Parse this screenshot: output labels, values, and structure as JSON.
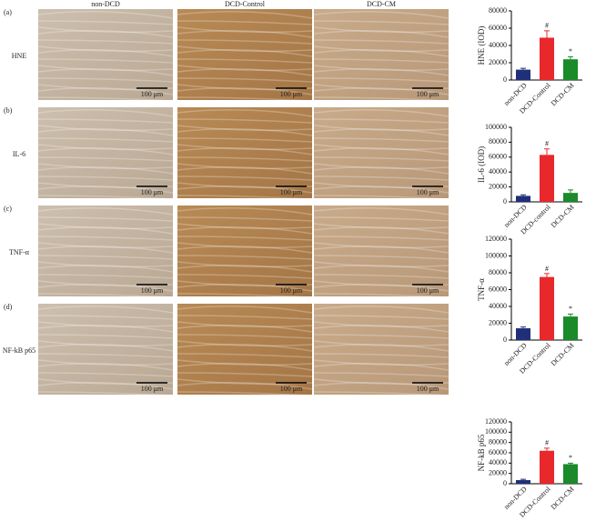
{
  "figure": {
    "columns": [
      "non-DCD",
      "DCD-Control",
      "DCD-CM"
    ],
    "rows": [
      {
        "tag": "(a)",
        "label": "HNE"
      },
      {
        "tag": "(b)",
        "label": "IL-6"
      },
      {
        "tag": "(c)",
        "label": "TNF-α"
      },
      {
        "tag": "(d)",
        "label": "NF-kB p65"
      }
    ],
    "scale_bar": "100 μm"
  },
  "chart_data": [
    {
      "type": "bar",
      "y_label": "HNE (IOD)",
      "categories": [
        "non-DCD",
        "DCD-Control",
        "DCD-CM"
      ],
      "values": [
        12000,
        49000,
        24000
      ],
      "errors": [
        1500,
        8000,
        3000
      ],
      "colors": [
        "#1f2f7a",
        "#e8282a",
        "#1a8a2a"
      ],
      "ylim": [
        0,
        80000
      ],
      "yticks": [
        0,
        20000,
        40000,
        60000,
        80000
      ],
      "annotations": [
        {
          "text": "#",
          "category": "DCD-Control"
        },
        {
          "text": "*",
          "category": "DCD-CM"
        }
      ]
    },
    {
      "type": "bar",
      "y_label": "IL-6 (IOD)",
      "categories": [
        "non-DCD",
        "DCD-control",
        "DCD-CM"
      ],
      "values": [
        8000,
        63000,
        12000
      ],
      "errors": [
        1500,
        8000,
        4000
      ],
      "colors": [
        "#1f2f7a",
        "#e8282a",
        "#1a8a2a"
      ],
      "ylim": [
        0,
        100000
      ],
      "yticks": [
        0,
        20000,
        40000,
        60000,
        80000,
        100000
      ],
      "annotations": [
        {
          "text": "#",
          "category": "DCD-control"
        }
      ]
    },
    {
      "type": "bar",
      "y_label": "TNF-α",
      "categories": [
        "non-DCD",
        "DCD-Control",
        "DCD-CM"
      ],
      "values": [
        14000,
        75000,
        28000
      ],
      "errors": [
        1500,
        4000,
        3000
      ],
      "colors": [
        "#1f2f7a",
        "#e8282a",
        "#1a8a2a"
      ],
      "ylim": [
        0,
        120000
      ],
      "yticks": [
        0,
        20000,
        40000,
        60000,
        80000,
        100000,
        120000
      ],
      "annotations": [
        {
          "text": "#",
          "category": "DCD-Control"
        },
        {
          "text": "*",
          "category": "DCD-CM"
        }
      ]
    },
    {
      "type": "bar",
      "y_label": "NF-kB p65",
      "categories": [
        "non-DCD",
        "DCD-Control",
        "DCD-CM"
      ],
      "values": [
        7000,
        64000,
        38000
      ],
      "errors": [
        1500,
        5000,
        2000
      ],
      "colors": [
        "#1f2f7a",
        "#e8282a",
        "#1a8a2a"
      ],
      "ylim": [
        0,
        120000
      ],
      "yticks": [
        0,
        20000,
        40000,
        60000,
        80000,
        100000,
        120000
      ],
      "annotations": [
        {
          "text": "#",
          "category": "DCD-Control"
        },
        {
          "text": "*",
          "category": "DCD-CM"
        }
      ]
    }
  ]
}
